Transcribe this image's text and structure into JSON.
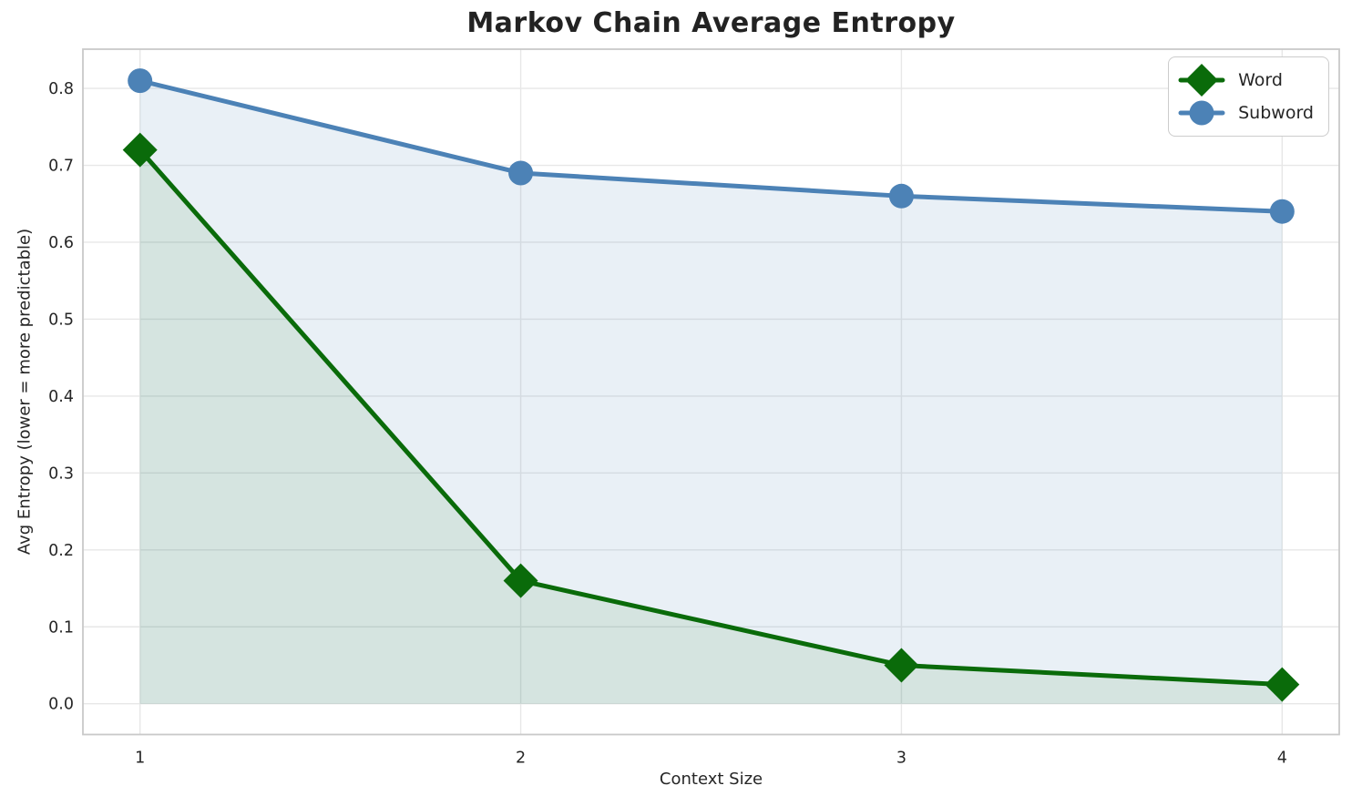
{
  "chart_data": {
    "type": "line",
    "title": "Markov Chain Average Entropy",
    "xlabel": "Context Size",
    "ylabel": "Avg Entropy (lower = more predictable)",
    "x": [
      1,
      2,
      3,
      4
    ],
    "series": [
      {
        "name": "Word",
        "marker": "diamond",
        "color": "#0a6b0a",
        "fill_alpha": 0.09,
        "values": [
          0.72,
          0.16,
          0.05,
          0.025
        ]
      },
      {
        "name": "Subword",
        "marker": "circle",
        "color": "#4c82b6",
        "fill_alpha": 0.12,
        "values": [
          0.81,
          0.69,
          0.66,
          0.64
        ]
      }
    ],
    "fill_to_zero": true,
    "xticks": [
      1,
      2,
      3,
      4
    ],
    "yticks": [
      0.0,
      0.1,
      0.2,
      0.3,
      0.4,
      0.5,
      0.6,
      0.7,
      0.8
    ],
    "xlim": [
      0.85,
      4.15
    ],
    "ylim": [
      -0.04,
      0.851
    ],
    "grid": true,
    "grid_color": "#e7e7e7",
    "spine_color": "#c9c9c9",
    "legend_position": "upper right",
    "line_width": 5
  }
}
